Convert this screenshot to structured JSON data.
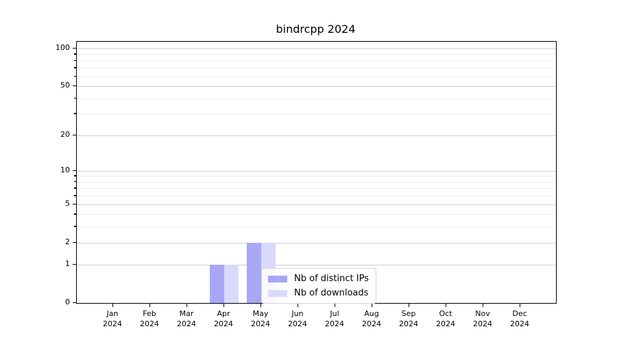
{
  "chart_data": {
    "type": "bar",
    "title": "bindrcpp 2024",
    "year_label": "2024",
    "categories": [
      "Jan",
      "Feb",
      "Mar",
      "Apr",
      "May",
      "Jun",
      "Jul",
      "Aug",
      "Sep",
      "Oct",
      "Nov",
      "Dec"
    ],
    "series": [
      {
        "name": "Nb of distinct IPs",
        "color": "#a7a7f5",
        "values": [
          0,
          0,
          0,
          1,
          2,
          0,
          0,
          0,
          0,
          0,
          0,
          0
        ]
      },
      {
        "name": "Nb of downloads",
        "color": "#d9d9fa",
        "values": [
          0,
          0,
          0,
          1,
          2,
          0,
          0,
          0,
          0,
          0,
          0,
          0
        ]
      }
    ],
    "xlabel": "",
    "ylabel": "",
    "y_axis": {
      "scale": "log1p",
      "ticks": [
        0,
        1,
        2,
        5,
        10,
        20,
        50,
        100
      ],
      "minor_ticks": [
        3,
        4,
        6,
        7,
        8,
        9,
        30,
        40,
        60,
        70,
        80,
        90
      ],
      "ylim": [
        0,
        113.4
      ]
    },
    "grid": true,
    "legend_position": "lower-center-inside",
    "colors": {
      "major_grid": "#cfcfcf",
      "minor_grid": "#ededed",
      "spine": "#000000",
      "background": "#ffffff"
    }
  }
}
